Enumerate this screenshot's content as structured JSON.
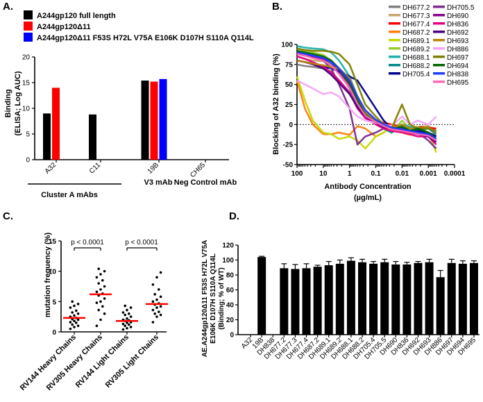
{
  "panelA": {
    "panel_label": "A.",
    "legend": [
      {
        "label": "A244gp120 full length",
        "color": "#000000"
      },
      {
        "label": "A244gp120Δ11",
        "color": "#ff0000"
      },
      {
        "label": "A244gp120Δ11 F53S H72L V75A E106K D107H S110A Q114L",
        "color": "#0000ff"
      }
    ],
    "ylabel_line1": "Binding",
    "ylabel_line2": "(ELISA; Log  AUC)",
    "group_labels": {
      "cluster": "Cluster  A mAbs",
      "v3": "V3 mAb",
      "neg": "Neg Control mAb"
    }
  },
  "panelB": {
    "panel_label": "B.",
    "ylabel": "Blocking of A32 binding (%)",
    "xlabel_line1": "Antibody Concentration",
    "xlabel_line2": "(µg/mL)",
    "x_tick_labels": [
      "100",
      "10",
      "1",
      "0.1",
      "0.01",
      "0.001",
      "0.0001"
    ],
    "y_tick_labels": [
      "100",
      "75",
      "50",
      "25",
      "0",
      "-25",
      "-50"
    ]
  },
  "panelC": {
    "panel_label": "C.",
    "ylabel": "mutation frequency (%)",
    "pvalue_1": "p < 0.0001",
    "pvalue_2": "p < 0.0001"
  },
  "panelD": {
    "panel_label": "D.",
    "ylabel_line1": "AE.A244gp120Δ11 F53S H72L  V75A",
    "ylabel_line2": "E106K D107H S110A Q114L",
    "ylabel_line3": "(Binding; % of WT)"
  },
  "chart_data": [
    {
      "type": "bar",
      "title": "A.",
      "xlabel": "",
      "ylabel": "Binding (ELISA; Log AUC)",
      "ylim": [
        0,
        20
      ],
      "y_ticks": [
        0,
        5,
        10,
        15,
        20
      ],
      "categories": [
        "A32",
        "C11",
        "19B",
        "CH65"
      ],
      "series": [
        {
          "name": "A244gp120 full length",
          "color": "#000000",
          "values": [
            9.0,
            8.8,
            15.4,
            0
          ]
        },
        {
          "name": "A244gp120Δ11",
          "color": "#ff0000",
          "values": [
            14.0,
            null,
            15.2,
            0
          ]
        },
        {
          "name": "A244gp120Δ11 F53S H72L V75A E106K D107H S110A Q114L",
          "color": "#0000ff",
          "values": [
            null,
            null,
            15.7,
            0
          ]
        }
      ]
    },
    {
      "type": "line",
      "title": "B.",
      "xlabel": "Antibody Concentration (µg/mL)",
      "ylabel": "Blocking of A32 binding (%)",
      "x_scale": "log",
      "x_reversed": true,
      "xlim": [
        100,
        0.0001
      ],
      "ylim": [
        -50,
        100
      ],
      "y_ticks": [
        -50,
        -25,
        0,
        25,
        50,
        75,
        100
      ],
      "x": [
        100,
        50,
        25,
        10,
        5,
        2.5,
        1,
        0.5,
        0.25,
        0.1,
        0.05,
        0.025,
        0.01,
        0.005,
        0.0025,
        0.001,
        0.0005
      ],
      "series": [
        {
          "name": "DH677.2",
          "color": "#7f7f7f",
          "values": [
            75,
            73,
            72,
            70,
            66,
            55,
            40,
            22,
            10,
            2,
            0,
            -5,
            -5,
            -3,
            -5,
            -2,
            -8
          ]
        },
        {
          "name": "DH677.3",
          "color": "#c8a46e",
          "values": [
            85,
            82,
            80,
            79,
            75,
            65,
            50,
            30,
            14,
            5,
            0,
            -4,
            0,
            -3,
            -3,
            -2,
            -15
          ]
        },
        {
          "name": "DH677.4",
          "color": "#ff0000",
          "values": [
            90,
            88,
            86,
            82,
            78,
            70,
            55,
            30,
            12,
            5,
            2,
            0,
            -3,
            -5,
            -3,
            -4,
            -5
          ]
        },
        {
          "name": "DH687.2",
          "color": "#ff7f0e",
          "values": [
            55,
            20,
            0,
            -12,
            -12,
            -10,
            -13,
            -2,
            -5,
            -15,
            -10,
            0,
            -10,
            -13,
            -10,
            -15,
            -22
          ]
        },
        {
          "name": "DH689.1",
          "color": "#c6d80a",
          "values": [
            60,
            30,
            5,
            -10,
            -12,
            -18,
            -15,
            -20,
            -30,
            -15,
            -10,
            -2,
            -5,
            -10,
            -5,
            -10,
            -35
          ]
        },
        {
          "name": "DH689.2",
          "color": "#9acd32",
          "values": [
            95,
            92,
            90,
            87,
            80,
            68,
            48,
            25,
            10,
            2,
            -5,
            -10,
            5,
            -5,
            -3,
            -10,
            -15
          ]
        },
        {
          "name": "DH688.1",
          "color": "#20b2aa",
          "values": [
            98,
            96,
            95,
            94,
            90,
            80,
            60,
            35,
            15,
            5,
            0,
            -5,
            0,
            -3,
            -5,
            -4,
            -10
          ]
        },
        {
          "name": "DH688.2",
          "color": "#008b8b",
          "values": [
            88,
            86,
            84,
            80,
            75,
            65,
            45,
            25,
            10,
            2,
            -5,
            -10,
            -2,
            -7,
            -7,
            -5,
            -12
          ]
        },
        {
          "name": "DH705.4",
          "color": "#00008b",
          "values": [
            80,
            78,
            76,
            72,
            70,
            66,
            60,
            55,
            40,
            20,
            5,
            -5,
            -8,
            -10,
            -8,
            -10,
            -15
          ]
        },
        {
          "name": "DH705.5",
          "color": "#7b2d8e",
          "values": [
            88,
            86,
            84,
            80,
            70,
            50,
            20,
            -25,
            -15,
            -10,
            -5,
            -3,
            -5,
            -8,
            -10,
            -20,
            -30
          ]
        },
        {
          "name": "DH690",
          "color": "#8b008b",
          "values": [
            90,
            88,
            85,
            82,
            78,
            68,
            50,
            28,
            12,
            5,
            0,
            -3,
            -5,
            -8,
            -10,
            -12,
            -20
          ]
        },
        {
          "name": "DH836",
          "color": "#e6007e",
          "values": [
            85,
            82,
            78,
            72,
            65,
            55,
            40,
            20,
            8,
            0,
            -5,
            -8,
            -10,
            -12,
            -15,
            -15,
            -25
          ]
        },
        {
          "name": "DH692",
          "color": "#4b0082",
          "values": [
            80,
            78,
            75,
            70,
            62,
            52,
            38,
            22,
            10,
            2,
            -3,
            -5,
            -8,
            -10,
            -12,
            -15,
            -22
          ]
        },
        {
          "name": "DH693",
          "color": "#b8860b",
          "values": [
            80,
            78,
            76,
            74,
            72,
            70,
            58,
            35,
            15,
            5,
            0,
            -5,
            0,
            -5,
            -5,
            -3,
            -10
          ]
        },
        {
          "name": "DH886",
          "color": "#f4a6f4",
          "values": [
            55,
            50,
            45,
            38,
            40,
            35,
            20,
            10,
            5,
            2,
            0,
            -2,
            10,
            0,
            5,
            0,
            10
          ]
        },
        {
          "name": "DH697",
          "color": "#808000",
          "values": [
            95,
            93,
            92,
            92,
            91,
            88,
            75,
            50,
            25,
            10,
            0,
            -5,
            25,
            0,
            -5,
            -5,
            -8
          ]
        },
        {
          "name": "DH694",
          "color": "#006400",
          "values": [
            92,
            90,
            88,
            85,
            80,
            70,
            52,
            30,
            12,
            3,
            -2,
            -5,
            -3,
            -8,
            -5,
            -10,
            -18
          ]
        },
        {
          "name": "DH838",
          "color": "#1e3cff",
          "values": [
            90,
            88,
            86,
            83,
            78,
            70,
            55,
            35,
            18,
            6,
            0,
            -4,
            -6,
            -8,
            -10,
            -12,
            -18
          ]
        },
        {
          "name": "DH695",
          "color": "#ff69b4",
          "values": [
            88,
            86,
            83,
            80,
            74,
            63,
            46,
            26,
            11,
            3,
            -2,
            -6,
            -8,
            -10,
            -12,
            -14,
            -20
          ]
        }
      ]
    },
    {
      "type": "scatter",
      "title": "C.",
      "xlabel": "",
      "ylabel": "mutation frequency (%)",
      "ylim": [
        0,
        15
      ],
      "y_ticks": [
        0,
        5,
        10,
        15
      ],
      "categories": [
        "RV144 Heavy Chains",
        "RV305 Heavy Chains",
        "RV144 Light Chains",
        "RV305 Light Chains"
      ],
      "series": [
        {
          "name": "RV144 Heavy Chains",
          "median": 2.3,
          "values": [
            0.5,
            0.8,
            1.0,
            1.2,
            1.5,
            1.6,
            1.8,
            2.0,
            2.1,
            2.3,
            2.5,
            2.7,
            3.0,
            3.2,
            3.5,
            4.0,
            4.3,
            4.6,
            5.0
          ]
        },
        {
          "name": "RV305 Heavy Chains",
          "median": 6.2,
          "values": [
            1.0,
            2.0,
            3.0,
            3.6,
            4.2,
            4.8,
            5.0,
            5.5,
            6.0,
            6.3,
            6.6,
            7.0,
            7.5,
            8.0,
            8.5,
            9.0,
            9.5,
            10.0,
            10.4
          ]
        },
        {
          "name": "RV144 Light Chains",
          "median": 1.8,
          "values": [
            0.4,
            0.6,
            0.8,
            1.0,
            1.2,
            1.3,
            1.5,
            1.6,
            1.8,
            1.9,
            2.0,
            2.2,
            2.5,
            2.8,
            3.0,
            3.2,
            3.6,
            4.0,
            4.3
          ]
        },
        {
          "name": "RV305 Light Chains",
          "median": 4.6,
          "values": [
            1.6,
            2.5,
            2.8,
            3.0,
            3.3,
            3.6,
            4.0,
            4.2,
            4.5,
            4.7,
            5.0,
            5.3,
            5.8,
            6.2,
            7.0,
            7.8,
            9.0,
            9.8
          ]
        }
      ],
      "annotations": [
        "p < 0.0001",
        "p < 0.0001"
      ]
    },
    {
      "type": "bar",
      "title": "D.",
      "xlabel": "",
      "ylabel": "AE.A244gp120Δ11 F53S H72L V75A E106K D107H S110A Q114L (Binding; % of WT)",
      "ylim": [
        0,
        120
      ],
      "y_ticks": [
        0,
        20,
        40,
        60,
        80,
        100,
        120
      ],
      "categories": [
        "A32",
        "19B",
        "DH838",
        "DH677.2",
        "DH677.3",
        "DH677.4",
        "DH687.2",
        "DH689.1",
        "DH689.2",
        "DH688.1",
        "DH688.2",
        "DH705.4",
        "DH705.5",
        "DH690",
        "DH836",
        "DH692",
        "DH693",
        "DH886",
        "DH697",
        "DH694",
        "DH695"
      ],
      "values": [
        0,
        104,
        0,
        89,
        88,
        89,
        91,
        93,
        95,
        99,
        97,
        95,
        97,
        94,
        94,
        96,
        97,
        77,
        96,
        95,
        96
      ],
      "errors": [
        0,
        1,
        0,
        6,
        6,
        6,
        2,
        5,
        5,
        4,
        4,
        3,
        4,
        4,
        3,
        2,
        4,
        9,
        5,
        4,
        3
      ]
    }
  ]
}
